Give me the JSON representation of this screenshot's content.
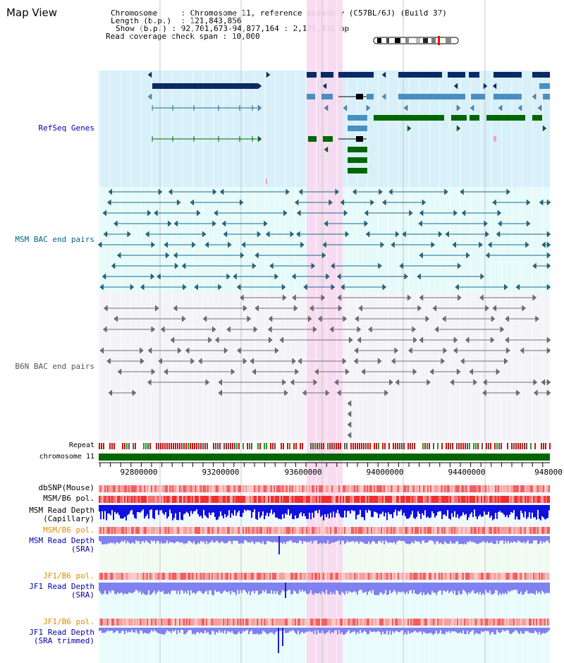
{
  "view_title": "Map View",
  "info": {
    "chromosome_label": "Chromosome",
    "chromosome_value": "Chromosome 11, reference assembly (C57BL/6J) (Build 37)",
    "length_label": "Length (b.p.)",
    "length_value": "121,843,856",
    "show_label": "Show (b.p.)",
    "show_value": "92,701,673-94,877,164 : 2,175,492 bp",
    "coverage_label": "Read coverage check span",
    "coverage_value": "10,000"
  },
  "tracks": {
    "refseq": "RefSeq Genes",
    "msm_bac": "MSM BAC end pairs",
    "b6n_bac": "B6N BAC end pairs",
    "repeat": "Repeat",
    "chromosome": "chromosome 11",
    "dbsnp": "dbSNP(Mouse)",
    "msm_b6_pol_1": "MSM/B6 pol.",
    "msm_read_depth_cap": "MSM Read Depth",
    "msm_read_depth_cap_sub": "(Capillary)",
    "msm_b6_pol_2": "MSM/B6 pol.",
    "msm_read_depth_sra": "MSM Read Depth",
    "msm_read_depth_sra_sub": "(SRA)",
    "jf1_b6_pol_1": "JF1/B6 pol.",
    "jf1_read_depth_sra": "JF1 Read Depth",
    "jf1_read_depth_sra_sub": "(SRA)",
    "jf1_b6_pol_2": "JF1/B6 pol.",
    "jf1_read_depth_trim": "JF1 Read Depth",
    "jf1_read_depth_trim_sub": "(SRA trimmed)"
  },
  "axis": {
    "ticks": [
      "92800000",
      "93200000",
      "93600000",
      "94000000",
      "94400000",
      "948000"
    ]
  },
  "colors": {
    "refseq_bg": "#d8f0fa",
    "bac_msm_bg": "#e6fafa",
    "bac_b6n_bg": "#f4f4f8",
    "highlight": "#f8d8f0",
    "refseq_dark": "#0a2a66",
    "refseq_mid": "#4a8fc0",
    "refseq_green": "#006600",
    "msm_bac": "#1a6a8a",
    "b6n_bac": "#707070",
    "chromosome": "#006600",
    "depth_dark": "#1010e0",
    "depth_light": "#8080f0"
  }
}
